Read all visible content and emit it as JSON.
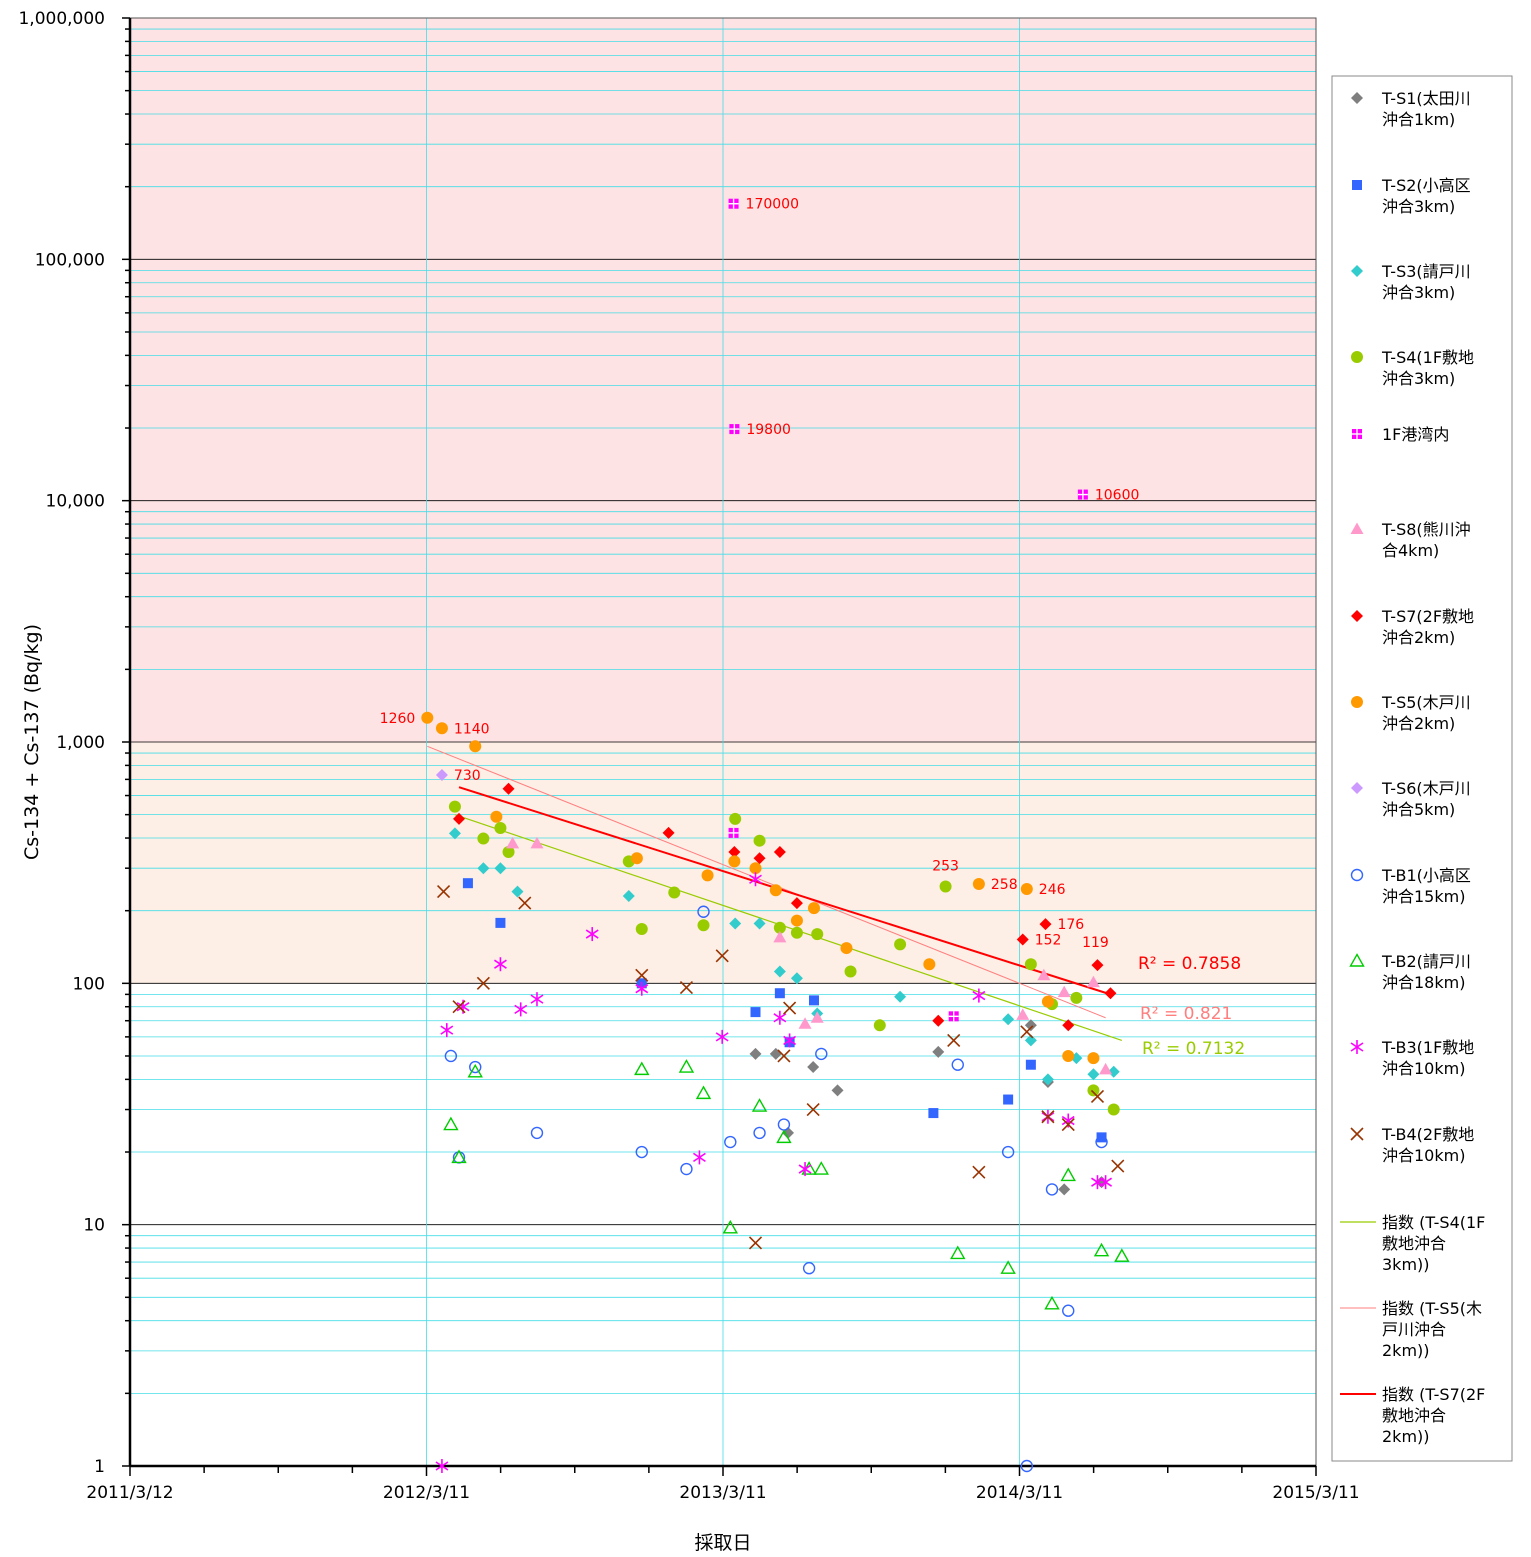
{
  "chart_data": {
    "type": "scatter",
    "xlabel": "採取日",
    "ylabel": "Cs-134 + Cs-137 (Bq/kg)",
    "y_scale": "log",
    "ylim": [
      1,
      1000000
    ],
    "xlim": [
      "2011/3/12",
      "2015/3/11"
    ],
    "grid": true,
    "legend_position": "right",
    "x_ticks": [
      "2011/3/12",
      "2012/3/11",
      "2013/3/11",
      "2014/3/11",
      "2015/3/11"
    ],
    "y_ticks": [
      "1",
      "10",
      "100",
      "1,000",
      "10,000",
      "100,000",
      "1,000,000"
    ],
    "bands": [
      {
        "from": 1000,
        "to": 1000000,
        "color": "#fde3e3"
      },
      {
        "from": 100,
        "to": 1000,
        "color": "#fdeee6"
      }
    ],
    "series": [
      {
        "name": "T-S1(太田川沖合1km)",
        "marker": "diamond",
        "color": "#7f7f7f",
        "filled": true,
        "points": [
          [
            "2013/4/20",
            51
          ],
          [
            "2013/5/15",
            51
          ],
          [
            "2013/5/30",
            24
          ],
          [
            "2013/6/30",
            45
          ],
          [
            "2013/7/30",
            36
          ],
          [
            "2013/12/1",
            52
          ],
          [
            "2014/3/25",
            67
          ],
          [
            "2014/4/15",
            39
          ],
          [
            "2014/5/5",
            14
          ],
          [
            "2014/6/20",
            15
          ]
        ]
      },
      {
        "name": "T-S2(小高区沖合3km)",
        "marker": "square",
        "color": "#3366ff",
        "filled": true,
        "points": [
          [
            "2012/5/1",
            260
          ],
          [
            "2012/6/10",
            178
          ],
          [
            "2012/12/1",
            100
          ],
          [
            "2013/4/20",
            76
          ],
          [
            "2013/5/20",
            91
          ],
          [
            "2013/6/1",
            57
          ],
          [
            "2013/7/1",
            85
          ],
          [
            "2013/11/25",
            29
          ],
          [
            "2014/2/25",
            33
          ],
          [
            "2014/3/25",
            46
          ],
          [
            "2014/6/20",
            23
          ]
        ]
      },
      {
        "name": "T-S3(請戸川沖合3km)",
        "marker": "diamond",
        "color": "#33cccc",
        "filled": true,
        "points": [
          [
            "2012/4/15",
            418
          ],
          [
            "2012/5/20",
            300
          ],
          [
            "2012/6/10",
            300
          ],
          [
            "2012/7/1",
            240
          ],
          [
            "2012/11/15",
            230
          ],
          [
            "2013/3/26",
            177
          ],
          [
            "2013/4/25",
            177
          ],
          [
            "2013/5/20",
            112
          ],
          [
            "2013/6/10",
            105
          ],
          [
            "2013/7/5",
            75
          ],
          [
            "2013/10/15",
            88
          ],
          [
            "2014/2/25",
            71
          ],
          [
            "2014/3/25",
            58
          ],
          [
            "2014/4/15",
            40
          ],
          [
            "2014/5/20",
            49
          ],
          [
            "2014/6/10",
            42
          ],
          [
            "2014/7/5",
            43
          ]
        ]
      },
      {
        "name": "T-S4(1F敷地沖合3km)",
        "marker": "circle",
        "color": "#99cc00",
        "filled": true,
        "points": [
          [
            "2012/4/15",
            540
          ],
          [
            "2012/5/20",
            398
          ],
          [
            "2012/6/10",
            440
          ],
          [
            "2012/6/20",
            350
          ],
          [
            "2012/11/15",
            320
          ],
          [
            "2012/12/1",
            168
          ],
          [
            "2013/1/10",
            238
          ],
          [
            "2013/2/15",
            174
          ],
          [
            "2013/3/26",
            480
          ],
          [
            "2013/4/25",
            390
          ],
          [
            "2013/5/20",
            170
          ],
          [
            "2013/6/10",
            162
          ],
          [
            "2013/7/5",
            160
          ],
          [
            "2013/8/15",
            112
          ],
          [
            "2013/9/20",
            67
          ],
          [
            "2013/10/15",
            145
          ],
          [
            "2013/12/10",
            252
          ],
          [
            "2014/3/25",
            120
          ],
          [
            "2014/4/20",
            82
          ],
          [
            "2014/5/20",
            87
          ],
          [
            "2014/6/10",
            36
          ],
          [
            "2014/7/5",
            30
          ]
        ]
      },
      {
        "name": "1F港湾内",
        "marker": "square-cross",
        "color": "#ff00ff",
        "filled": true,
        "points": [
          [
            "2013/3/24",
            170000
          ],
          [
            "2013/3/25",
            19800
          ],
          [
            "2013/3/24",
            420
          ],
          [
            "2013/12/20",
            73
          ],
          [
            "2014/5/28",
            10600
          ]
        ],
        "labels": [
          {
            "point": 0,
            "text": "170000"
          },
          {
            "point": 1,
            "text": "19800"
          },
          {
            "point": 4,
            "text": "10600"
          }
        ]
      },
      {
        "name": "T-S8(熊川沖合4km)",
        "marker": "triangle",
        "color": "#ff99cc",
        "filled": true,
        "points": [
          [
            "2012/6/25",
            380
          ],
          [
            "2012/7/25",
            380
          ],
          [
            "2013/5/20",
            155
          ],
          [
            "2013/6/20",
            68
          ],
          [
            "2013/7/5",
            72
          ],
          [
            "2014/3/15",
            74
          ],
          [
            "2014/4/10",
            108
          ],
          [
            "2014/5/5",
            92
          ],
          [
            "2014/6/10",
            101
          ],
          [
            "2014/6/25",
            44
          ]
        ]
      },
      {
        "name": "T-S7(2F敷地沖合2km)",
        "marker": "diamond",
        "color": "#ff0000",
        "filled": true,
        "points": [
          [
            "2012/4/20",
            480
          ],
          [
            "2012/6/20",
            640
          ],
          [
            "2013/1/3",
            420
          ],
          [
            "2013/3/25",
            350
          ],
          [
            "2013/4/25",
            330
          ],
          [
            "2013/5/20",
            350
          ],
          [
            "2013/6/10",
            215
          ],
          [
            "2013/12/1",
            70
          ],
          [
            "2014/3/15",
            152
          ],
          [
            "2014/4/12",
            176
          ],
          [
            "2014/5/10",
            67
          ],
          [
            "2014/6/15",
            119
          ],
          [
            "2014/7/1",
            91
          ]
        ],
        "labels": [
          {
            "point": 8,
            "text": "152"
          },
          {
            "point": 9,
            "text": "176"
          },
          {
            "point": 11,
            "text": "119"
          }
        ]
      },
      {
        "name": "T-S5(木戸川沖合2km)",
        "marker": "circle",
        "color": "#ff9900",
        "filled": true,
        "points": [
          [
            "2012/3/12",
            1260
          ],
          [
            "2012/3/30",
            1140
          ],
          [
            "2012/5/10",
            960
          ],
          [
            "2012/6/5",
            490
          ],
          [
            "2012/11/25",
            330
          ],
          [
            "2013/2/20",
            280
          ],
          [
            "2013/3/25",
            320
          ],
          [
            "2013/4/20",
            300
          ],
          [
            "2013/5/15",
            243
          ],
          [
            "2013/6/10",
            182
          ],
          [
            "2013/7/1",
            205
          ],
          [
            "2013/8/10",
            140
          ],
          [
            "2013/11/20",
            120
          ],
          [
            "2014/1/20",
            258
          ],
          [
            "2014/3/20",
            246
          ],
          [
            "2014/4/15",
            84
          ],
          [
            "2014/5/10",
            50
          ],
          [
            "2014/6/10",
            49
          ]
        ],
        "labels": [
          {
            "point": 0,
            "text": "1260"
          },
          {
            "point": 1,
            "text": "1140"
          },
          {
            "point": 13,
            "text": "258"
          },
          {
            "point": 14,
            "text": "246"
          }
        ]
      },
      {
        "name": "T-S6(木戸川沖合5km)",
        "marker": "diamond",
        "color": "#cc99ff",
        "filled": true,
        "points": [
          [
            "2012/3/30",
            730
          ]
        ],
        "labels": [
          {
            "point": 0,
            "text": "730"
          }
        ]
      },
      {
        "name": "T-B1(小高区沖合15km)",
        "marker": "circle",
        "color": "#3366ff",
        "filled": false,
        "points": [
          [
            "2012/4/10",
            50
          ],
          [
            "2012/4/20",
            19
          ],
          [
            "2012/5/10",
            45
          ],
          [
            "2012/7/25",
            24
          ],
          [
            "2012/12/1",
            20
          ],
          [
            "2013/1/25",
            17
          ],
          [
            "2013/2/15",
            198
          ],
          [
            "2013/3/20",
            22
          ],
          [
            "2013/4/25",
            24
          ],
          [
            "2013/5/25",
            26
          ],
          [
            "2013/6/25",
            6.6
          ],
          [
            "2013/7/10",
            51
          ],
          [
            "2013/12/25",
            46
          ],
          [
            "2014/2/25",
            20
          ],
          [
            "2014/3/20",
            1
          ],
          [
            "2014/4/20",
            14
          ],
          [
            "2014/5/10",
            4.4
          ],
          [
            "2014/6/20",
            22
          ]
        ]
      },
      {
        "name": "T-B2(請戸川沖合18km)",
        "marker": "triangle",
        "color": "#00cc00",
        "filled": false,
        "points": [
          [
            "2012/4/10",
            26
          ],
          [
            "2012/4/20",
            19
          ],
          [
            "2012/5/10",
            43
          ],
          [
            "2012/12/1",
            44
          ],
          [
            "2013/1/25",
            45
          ],
          [
            "2013/2/15",
            35
          ],
          [
            "2013/3/20",
            9.7
          ],
          [
            "2013/4/25",
            31
          ],
          [
            "2013/5/25",
            23
          ],
          [
            "2013/6/25",
            17
          ],
          [
            "2013/7/10",
            17
          ],
          [
            "2013/12/25",
            7.6
          ],
          [
            "2014/2/25",
            6.6
          ],
          [
            "2014/4/20",
            4.7
          ],
          [
            "2014/5/10",
            16
          ],
          [
            "2014/6/20",
            7.8
          ],
          [
            "2014/7/15",
            7.4
          ]
        ]
      },
      {
        "name": "T-B3(1F敷地沖合10km)",
        "marker": "asterisk",
        "color": "#ff00ff",
        "filled": true,
        "points": [
          [
            "2012/3/30",
            1
          ],
          [
            "2012/4/5",
            64
          ],
          [
            "2012/4/25",
            80
          ],
          [
            "2012/6/10",
            120
          ],
          [
            "2012/7/5",
            78
          ],
          [
            "2012/7/25",
            86
          ],
          [
            "2012/10/1",
            160
          ],
          [
            "2012/12/1",
            95
          ],
          [
            "2013/2/10",
            19
          ],
          [
            "2013/3/10",
            60
          ],
          [
            "2013/4/20",
            270
          ],
          [
            "2013/5/20",
            72
          ],
          [
            "2013/6/1",
            58
          ],
          [
            "2013/6/20",
            17
          ],
          [
            "2014/1/20",
            89
          ],
          [
            "2014/4/15",
            28
          ],
          [
            "2014/5/10",
            27
          ],
          [
            "2014/6/15",
            15
          ],
          [
            "2014/6/25",
            15
          ]
        ]
      },
      {
        "name": "T-B4(2F敷地沖合10km)",
        "marker": "x",
        "color": "#993300",
        "filled": true,
        "points": [
          [
            "2012/4/1",
            240
          ],
          [
            "2012/4/20",
            80
          ],
          [
            "2012/5/20",
            100
          ],
          [
            "2012/7/10",
            215
          ],
          [
            "2012/12/1",
            108
          ],
          [
            "2013/1/25",
            96
          ],
          [
            "2013/3/10",
            130
          ],
          [
            "2013/4/20",
            8.4
          ],
          [
            "2013/5/25",
            50
          ],
          [
            "2013/6/1",
            79
          ],
          [
            "2013/6/30",
            30
          ],
          [
            "2013/12/20",
            58
          ],
          [
            "2014/1/20",
            16.5
          ],
          [
            "2014/3/20",
            63
          ],
          [
            "2014/4/15",
            28
          ],
          [
            "2014/5/10",
            26
          ],
          [
            "2014/6/15",
            34
          ],
          [
            "2014/7/10",
            17.5
          ]
        ]
      }
    ],
    "trendlines": [
      {
        "name": "指数 (T-S4(1F敷地沖合3km))",
        "color": "#99cc00",
        "width": 1.2,
        "from": [
          "2012/4/15",
          500
        ],
        "to": [
          "2014/7/15",
          58
        ],
        "r2": "R² = 0.7132"
      },
      {
        "name": "指数 (T-S5(木戸川沖合2km))",
        "color": "#ff7f7f",
        "width": 1,
        "from": [
          "2012/3/12",
          960
        ],
        "to": [
          "2014/6/25",
          72
        ],
        "r2": "R² = 0.821"
      },
      {
        "name": "指数 (T-S7(2F敷地沖合2km))",
        "color": "#ff0000",
        "width": 2,
        "from": [
          "2012/4/20",
          650
        ],
        "to": [
          "2014/7/1",
          90
        ],
        "r2": "R² = 0.7858"
      }
    ]
  },
  "legend_items": [
    {
      "id": "s1",
      "label": [
        "T-S1(太田川",
        "沖合1km)"
      ]
    },
    {
      "id": "s2",
      "label": [
        "T-S2(小高区",
        "沖合3km)"
      ]
    },
    {
      "id": "s3",
      "label": [
        "T-S3(請戸川",
        "沖合3km)"
      ]
    },
    {
      "id": "s4",
      "label": [
        "T-S4(1F敷地",
        "沖合3km)"
      ]
    },
    {
      "id": "port",
      "label": [
        "1F港湾内"
      ]
    },
    {
      "id": "s8",
      "label": [
        "T-S8(熊川沖",
        "合4km)"
      ]
    },
    {
      "id": "s7",
      "label": [
        "T-S7(2F敷地",
        "沖合2km)"
      ]
    },
    {
      "id": "s5",
      "label": [
        "T-S5(木戸川",
        "沖合2km)"
      ]
    },
    {
      "id": "s6",
      "label": [
        "T-S6(木戸川",
        "沖合5km)"
      ]
    },
    {
      "id": "b1",
      "label": [
        "T-B1(小高区",
        "沖合15km)"
      ]
    },
    {
      "id": "b2",
      "label": [
        "T-B2(請戸川",
        "沖合18km)"
      ]
    },
    {
      "id": "b3",
      "label": [
        "T-B3(1F敷地",
        "沖合10km)"
      ]
    },
    {
      "id": "b4",
      "label": [
        "T-B4(2F敷地",
        "沖合10km)"
      ]
    },
    {
      "id": "t4",
      "label": [
        "指数 (T-S4(1F",
        "敷地沖合",
        "3km))"
      ]
    },
    {
      "id": "t5",
      "label": [
        "指数 (T-S5(木",
        "戸川沖合",
        "2km))"
      ]
    },
    {
      "id": "t7",
      "label": [
        "指数 (T-S7(2F",
        "敷地沖合",
        "2km))"
      ]
    }
  ]
}
